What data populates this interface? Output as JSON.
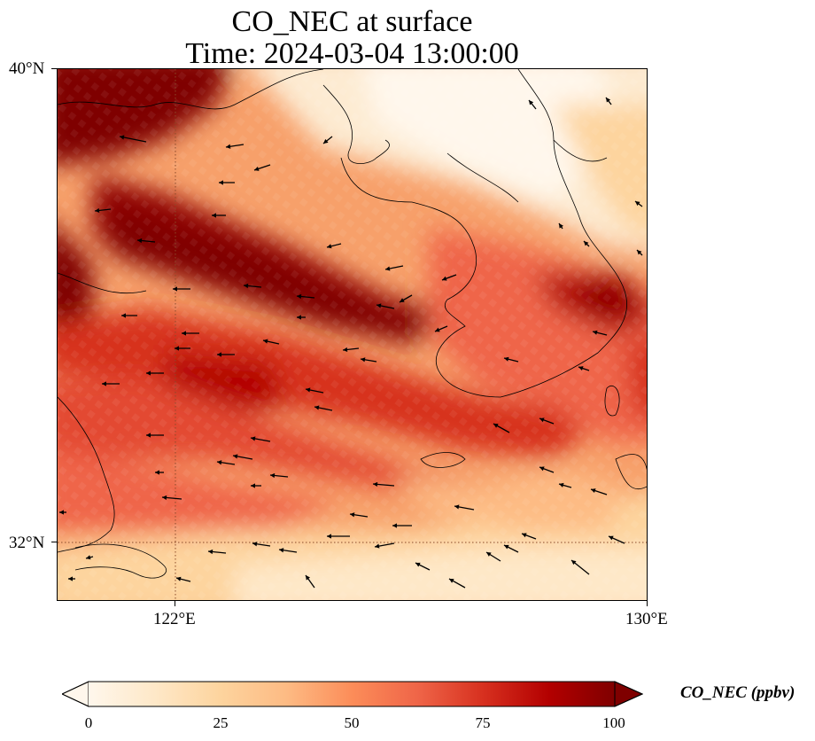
{
  "title": {
    "line1": "CO_NEC at surface",
    "line2": "Time: 2024-03-04 13:00:00"
  },
  "axes": {
    "lat_ticks": [
      {
        "label": "40°N",
        "value": 40
      },
      {
        "label": "32°N",
        "value": 32
      }
    ],
    "lon_ticks": [
      {
        "label": "122°E",
        "value": 122
      },
      {
        "label": "130°E",
        "value": 130
      }
    ],
    "lon_range": [
      120,
      130
    ],
    "lat_range": [
      31,
      40
    ],
    "gridlines": "dotted at 122°E and 32°N"
  },
  "colorbar": {
    "label": "CO_NEC (ppbv)",
    "ticks": [
      "0",
      "25",
      "50",
      "75",
      "100"
    ],
    "range": [
      0,
      100
    ],
    "extend": "both",
    "colormap": "OrRd",
    "colors": [
      "#fff7ec",
      "#fee8c8",
      "#fdd49e",
      "#fdbb84",
      "#fc8d59",
      "#ef6548",
      "#d7301f",
      "#b30000",
      "#7f0000"
    ]
  },
  "field": {
    "description_units": "ppbv",
    "max_band_color": "#7f0000",
    "low_color": "#fff7ec"
  },
  "wind_vectors": "arrows predominantly pointing westward over the Yellow Sea"
}
